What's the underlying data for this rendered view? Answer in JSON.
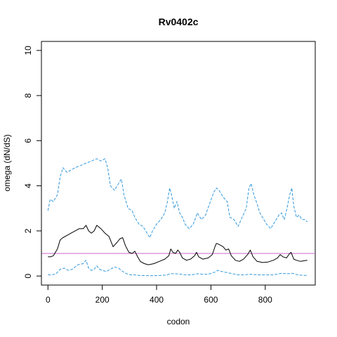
{
  "chart_data": {
    "type": "line",
    "title": "Rv0402c",
    "xlabel": "codon",
    "ylabel": "omega (dN/dS)",
    "xlim": [
      -24,
      984
    ],
    "ylim": [
      -0.4,
      10.4
    ],
    "xticks": [
      0,
      200,
      400,
      600,
      800
    ],
    "yticks": [
      0,
      2,
      4,
      6,
      8,
      10
    ],
    "reference_line": {
      "y": 1,
      "color": "#cc66cc"
    },
    "colors": {
      "estimate": "#000000",
      "bounds": "#3399dd"
    },
    "grid": false,
    "series": [
      {
        "role": "upper",
        "style": "dashed",
        "points": [
          [
            0,
            2.9
          ],
          [
            8,
            3.4
          ],
          [
            20,
            3.3
          ],
          [
            35,
            3.6
          ],
          [
            45,
            4.4
          ],
          [
            55,
            4.8
          ],
          [
            70,
            4.6
          ],
          [
            85,
            4.7
          ],
          [
            100,
            4.8
          ],
          [
            120,
            4.9
          ],
          [
            140,
            5.0
          ],
          [
            160,
            5.1
          ],
          [
            180,
            5.2
          ],
          [
            195,
            5.1
          ],
          [
            210,
            5.2
          ],
          [
            220,
            4.8
          ],
          [
            230,
            4.0
          ],
          [
            245,
            3.8
          ],
          [
            260,
            4.1
          ],
          [
            270,
            4.3
          ],
          [
            280,
            3.6
          ],
          [
            295,
            3.0
          ],
          [
            310,
            2.9
          ],
          [
            320,
            2.6
          ],
          [
            335,
            2.3
          ],
          [
            350,
            2.2
          ],
          [
            365,
            1.9
          ],
          [
            375,
            1.7
          ],
          [
            385,
            2.0
          ],
          [
            400,
            2.3
          ],
          [
            415,
            2.5
          ],
          [
            430,
            2.8
          ],
          [
            440,
            3.3
          ],
          [
            448,
            3.9
          ],
          [
            455,
            3.6
          ],
          [
            465,
            3.0
          ],
          [
            475,
            3.3
          ],
          [
            485,
            2.8
          ],
          [
            495,
            2.6
          ],
          [
            505,
            2.3
          ],
          [
            520,
            2.1
          ],
          [
            535,
            2.3
          ],
          [
            550,
            2.8
          ],
          [
            565,
            2.5
          ],
          [
            580,
            2.7
          ],
          [
            595,
            3.2
          ],
          [
            610,
            3.7
          ],
          [
            620,
            3.9
          ],
          [
            630,
            3.8
          ],
          [
            645,
            3.5
          ],
          [
            660,
            3.3
          ],
          [
            670,
            2.6
          ],
          [
            685,
            2.5
          ],
          [
            700,
            2.2
          ],
          [
            715,
            2.6
          ],
          [
            730,
            3.0
          ],
          [
            740,
            3.9
          ],
          [
            748,
            4.1
          ],
          [
            758,
            3.6
          ],
          [
            770,
            3.2
          ],
          [
            780,
            2.8
          ],
          [
            790,
            2.6
          ],
          [
            805,
            2.3
          ],
          [
            820,
            2.1
          ],
          [
            835,
            2.4
          ],
          [
            850,
            2.7
          ],
          [
            860,
            2.8
          ],
          [
            870,
            2.5
          ],
          [
            880,
            3.0
          ],
          [
            890,
            3.6
          ],
          [
            898,
            3.9
          ],
          [
            905,
            3.1
          ],
          [
            915,
            2.6
          ],
          [
            925,
            2.7
          ],
          [
            935,
            2.5
          ],
          [
            945,
            2.5
          ],
          [
            955,
            2.4
          ]
        ]
      },
      {
        "role": "estimate",
        "style": "solid",
        "points": [
          [
            0,
            0.85
          ],
          [
            10,
            0.85
          ],
          [
            20,
            0.9
          ],
          [
            35,
            1.2
          ],
          [
            45,
            1.6
          ],
          [
            55,
            1.7
          ],
          [
            70,
            1.8
          ],
          [
            85,
            1.9
          ],
          [
            100,
            2.0
          ],
          [
            115,
            2.1
          ],
          [
            130,
            2.1
          ],
          [
            140,
            2.25
          ],
          [
            150,
            2.0
          ],
          [
            160,
            1.9
          ],
          [
            170,
            2.0
          ],
          [
            180,
            2.25
          ],
          [
            195,
            2.1
          ],
          [
            210,
            1.9
          ],
          [
            225,
            1.75
          ],
          [
            240,
            1.3
          ],
          [
            255,
            1.5
          ],
          [
            265,
            1.65
          ],
          [
            275,
            1.7
          ],
          [
            285,
            1.35
          ],
          [
            298,
            1.05
          ],
          [
            310,
            1.0
          ],
          [
            320,
            1.1
          ],
          [
            330,
            0.85
          ],
          [
            340,
            0.65
          ],
          [
            355,
            0.55
          ],
          [
            370,
            0.5
          ],
          [
            390,
            0.55
          ],
          [
            410,
            0.65
          ],
          [
            430,
            0.75
          ],
          [
            445,
            0.9
          ],
          [
            452,
            1.2
          ],
          [
            460,
            1.05
          ],
          [
            470,
            1.0
          ],
          [
            478,
            1.15
          ],
          [
            485,
            1.05
          ],
          [
            495,
            0.8
          ],
          [
            510,
            0.7
          ],
          [
            525,
            0.75
          ],
          [
            540,
            0.9
          ],
          [
            547,
            1.05
          ],
          [
            555,
            0.85
          ],
          [
            570,
            0.75
          ],
          [
            590,
            0.8
          ],
          [
            605,
            0.95
          ],
          [
            615,
            1.3
          ],
          [
            620,
            1.45
          ],
          [
            630,
            1.4
          ],
          [
            645,
            1.3
          ],
          [
            655,
            1.15
          ],
          [
            665,
            1.2
          ],
          [
            675,
            0.9
          ],
          [
            690,
            0.7
          ],
          [
            705,
            0.65
          ],
          [
            720,
            0.75
          ],
          [
            735,
            0.95
          ],
          [
            745,
            1.15
          ],
          [
            755,
            0.85
          ],
          [
            770,
            0.65
          ],
          [
            790,
            0.6
          ],
          [
            810,
            0.62
          ],
          [
            830,
            0.7
          ],
          [
            845,
            0.8
          ],
          [
            855,
            0.95
          ],
          [
            865,
            0.85
          ],
          [
            878,
            0.8
          ],
          [
            890,
            1.0
          ],
          [
            895,
            1.05
          ],
          [
            905,
            0.75
          ],
          [
            915,
            0.7
          ],
          [
            930,
            0.65
          ],
          [
            945,
            0.68
          ],
          [
            955,
            0.7
          ]
        ]
      },
      {
        "role": "lower",
        "style": "dashed",
        "points": [
          [
            0,
            0.05
          ],
          [
            15,
            0.05
          ],
          [
            30,
            0.1
          ],
          [
            45,
            0.3
          ],
          [
            60,
            0.35
          ],
          [
            75,
            0.25
          ],
          [
            90,
            0.3
          ],
          [
            110,
            0.5
          ],
          [
            130,
            0.55
          ],
          [
            140,
            0.7
          ],
          [
            150,
            0.35
          ],
          [
            160,
            0.25
          ],
          [
            170,
            0.3
          ],
          [
            180,
            0.45
          ],
          [
            190,
            0.3
          ],
          [
            200,
            0.25
          ],
          [
            215,
            0.2
          ],
          [
            230,
            0.3
          ],
          [
            245,
            0.4
          ],
          [
            260,
            0.35
          ],
          [
            275,
            0.2
          ],
          [
            290,
            0.1
          ],
          [
            305,
            0.05
          ],
          [
            320,
            0.05
          ],
          [
            340,
            0.02
          ],
          [
            360,
            0.02
          ],
          [
            380,
            0.01
          ],
          [
            400,
            0.02
          ],
          [
            420,
            0.03
          ],
          [
            440,
            0.05
          ],
          [
            450,
            0.1
          ],
          [
            470,
            0.1
          ],
          [
            490,
            0.08
          ],
          [
            510,
            0.05
          ],
          [
            530,
            0.05
          ],
          [
            550,
            0.1
          ],
          [
            570,
            0.08
          ],
          [
            590,
            0.08
          ],
          [
            610,
            0.15
          ],
          [
            625,
            0.25
          ],
          [
            640,
            0.2
          ],
          [
            660,
            0.15
          ],
          [
            680,
            0.1
          ],
          [
            700,
            0.05
          ],
          [
            720,
            0.05
          ],
          [
            745,
            0.08
          ],
          [
            770,
            0.05
          ],
          [
            800,
            0.05
          ],
          [
            830,
            0.05
          ],
          [
            860,
            0.12
          ],
          [
            880,
            0.1
          ],
          [
            900,
            0.12
          ],
          [
            920,
            0.05
          ],
          [
            940,
            0.03
          ],
          [
            955,
            0.03
          ]
        ]
      }
    ]
  }
}
